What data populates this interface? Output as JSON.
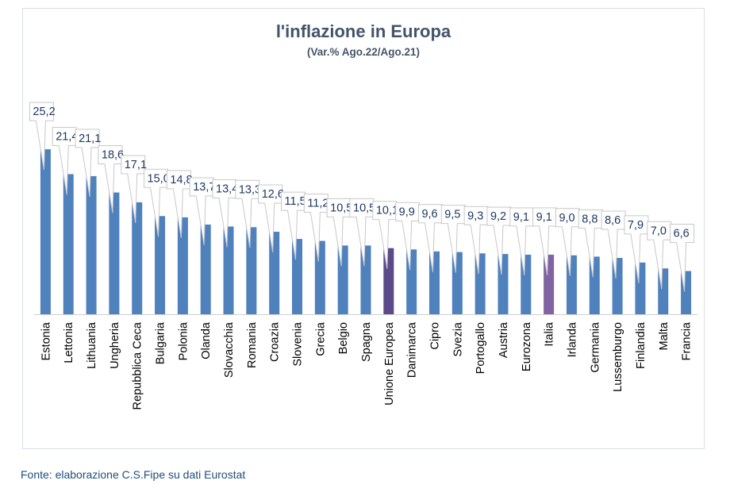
{
  "chart_data": {
    "type": "bar",
    "title": "l'inflazione in Europa",
    "subtitle": "(Var.% Ago.22/Ago.21)",
    "categories": [
      "Estonia",
      "Lettonia",
      "Lithuania",
      "Ungheria",
      "Repubblica Ceca",
      "Bulgaria",
      "Polonia",
      "Olanda",
      "Slovacchia",
      "Romania",
      "Croazia",
      "Slovenia",
      "Grecia",
      "Belgio",
      "Spagna",
      "Unione Europea",
      "Danimarca",
      "Cipro",
      "Svezia",
      "Portogallo",
      "Austria",
      "Eurozona",
      "Italia",
      "Irlanda",
      "Germania",
      "Lussemburgo",
      "Finlandia",
      "Malta",
      "Francia"
    ],
    "values": [
      25.2,
      21.4,
      21.1,
      18.6,
      17.1,
      15.0,
      14.8,
      13.7,
      13.4,
      13.3,
      12.6,
      11.5,
      11.2,
      10.5,
      10.5,
      10.1,
      9.9,
      9.6,
      9.5,
      9.3,
      9.2,
      9.1,
      9.1,
      9.0,
      8.8,
      8.6,
      7.9,
      7.0,
      6.6
    ],
    "data_labels": [
      "25,2",
      "21,4",
      "21,1",
      "18,6",
      "17,1",
      "15,0",
      "14,8",
      "13,7",
      "13,4",
      "13,3",
      "12,6",
      "11,5",
      "11,2",
      "10,5",
      "10,5",
      "10,1",
      "9,9",
      "9,6",
      "9,5",
      "9,3",
      "9,2",
      "9,1",
      "9,1",
      "9,0",
      "8,8",
      "8,6",
      "7,9",
      "7,0",
      "6,6"
    ],
    "ylim": [
      0,
      27
    ],
    "grid": false,
    "legend": "none",
    "colors": {
      "default": "#4f81bd",
      "Unione Europea": "#5b4a8a",
      "Italia": "#8064a2"
    }
  },
  "source": "Fonte: elaborazione C.S.Fipe su dati Eurostat"
}
